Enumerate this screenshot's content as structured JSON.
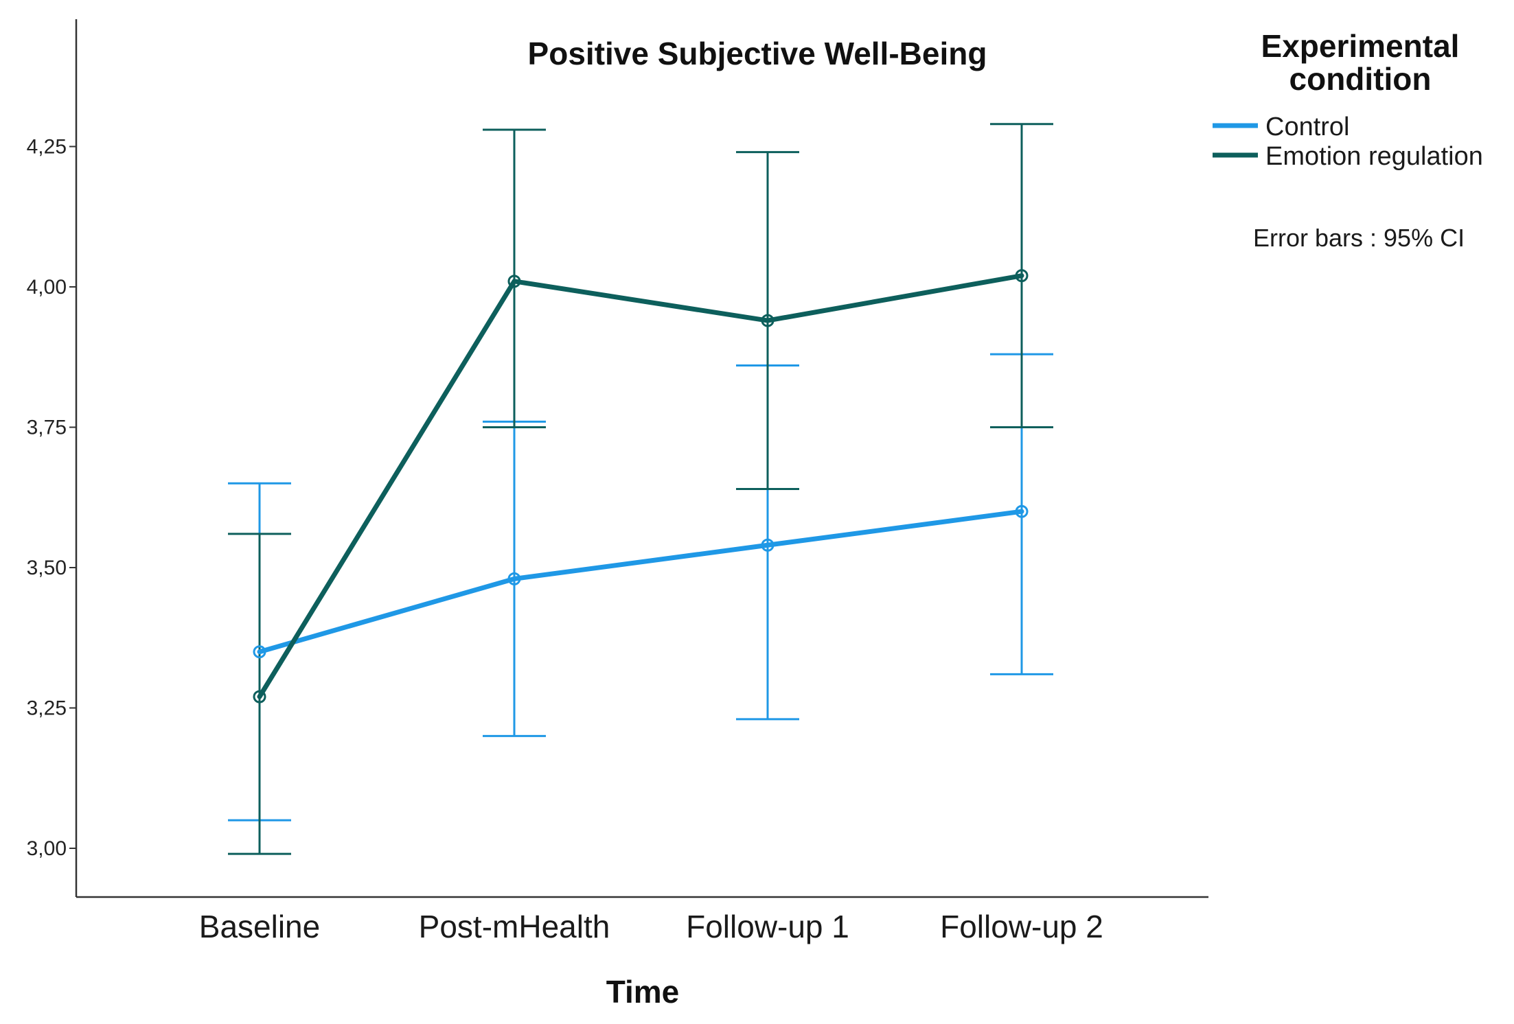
{
  "chart_data": {
    "type": "line",
    "title": "Positive Subjective Well-Being",
    "xlabel": "Time",
    "ylabel": "",
    "categories": [
      "Baseline",
      "Post-mHealth",
      "Follow-up 1",
      "Follow-up 2"
    ],
    "ylim": [
      2.97,
      4.48
    ],
    "yticks": [
      3.0,
      3.25,
      3.5,
      3.75,
      4.0,
      4.25
    ],
    "ytick_labels": [
      "3,00",
      "3,25",
      "3,50",
      "3,75",
      "4,00",
      "4,25"
    ],
    "grid": false,
    "legend": {
      "title_line1": "Experimental",
      "title_line2": "condition",
      "position": "right"
    },
    "note": "Error bars : 95% CI",
    "series": [
      {
        "name": "Control",
        "color": "#1f98e6",
        "values": [
          3.35,
          3.48,
          3.54,
          3.6
        ],
        "ci_low": [
          3.05,
          3.2,
          3.23,
          3.31
        ],
        "ci_high": [
          3.65,
          3.76,
          3.86,
          3.88
        ]
      },
      {
        "name": "Emotion regulation",
        "color": "#0d5f5c",
        "values": [
          3.27,
          4.01,
          3.94,
          4.02
        ],
        "ci_low": [
          2.99,
          3.75,
          3.64,
          3.75
        ],
        "ci_high": [
          3.56,
          4.28,
          4.24,
          4.29
        ]
      }
    ]
  }
}
